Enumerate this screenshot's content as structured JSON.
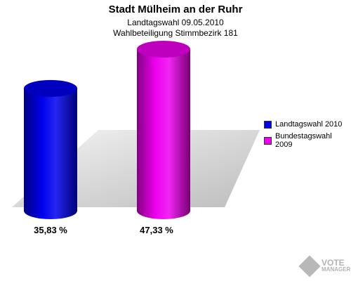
{
  "chart_data": {
    "type": "bar",
    "title": "Stadt Mülheim an der Ruhr",
    "subtitle": "Landtagswahl 09.05.2010",
    "subtitle2": "Wahlbeteiligung Stimmbezirk 181",
    "series": [
      {
        "name": "Landtagswahl 2010",
        "value": 35.83,
        "label": "35,83 %",
        "color": "#0000ee"
      },
      {
        "name": "Bundestagswahl 2009",
        "value": 47.33,
        "label": "47,33 %",
        "color": "#ee00ee"
      }
    ],
    "ylim": [
      0,
      47.33
    ],
    "legend_position": "right",
    "grid": false
  },
  "watermark": {
    "line1": "VOTE",
    "line2": "MANAGER",
    "icon": "vote-manager-logo-icon"
  }
}
